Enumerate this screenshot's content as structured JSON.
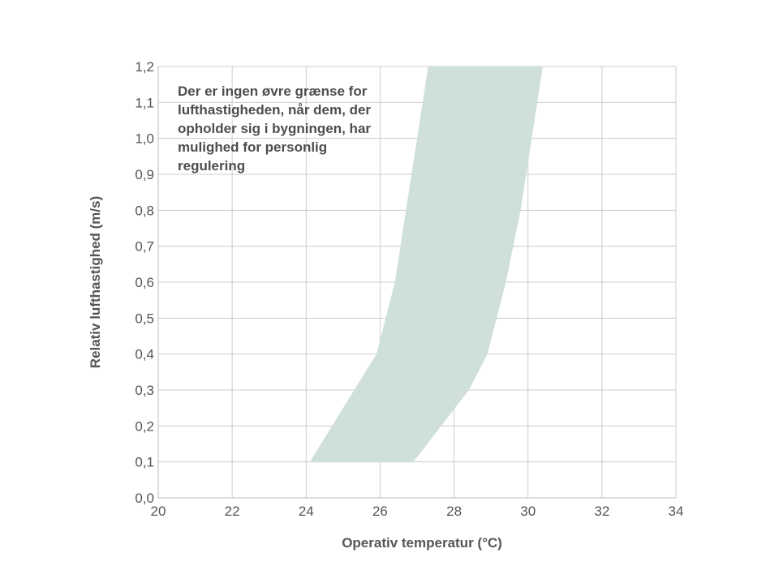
{
  "chart_data": {
    "type": "area",
    "xlabel": "Operativ temperatur (°C)",
    "ylabel": "Relativ lufthastighed (m/s)",
    "xlim": [
      20,
      34
    ],
    "ylim": [
      0,
      1.2
    ],
    "x_ticks": [
      "20",
      "22",
      "24",
      "26",
      "28",
      "30",
      "32",
      "34"
    ],
    "x_tick_values": [
      20,
      22,
      24,
      26,
      28,
      30,
      32,
      34
    ],
    "y_ticks": [
      "0,0",
      "0,1",
      "0,2",
      "0,3",
      "0,4",
      "0,5",
      "0,6",
      "0,7",
      "0,8",
      "0,9",
      "1,0",
      "1,1",
      "1,2"
    ],
    "y_tick_values": [
      0,
      0.1,
      0.2,
      0.3,
      0.4,
      0.5,
      0.6,
      0.7,
      0.8,
      0.9,
      1.0,
      1.1,
      1.2
    ],
    "grid": true,
    "band": {
      "color": "#cfe0d8",
      "lower_edge": [
        [
          24.1,
          0.1
        ],
        [
          25.3,
          0.3
        ],
        [
          25.9,
          0.4
        ],
        [
          26.4,
          0.6
        ],
        [
          26.7,
          0.8
        ],
        [
          27.0,
          1.0
        ],
        [
          27.3,
          1.2
        ]
      ],
      "upper_edge": [
        [
          26.9,
          0.1
        ],
        [
          28.4,
          0.3
        ],
        [
          28.9,
          0.4
        ],
        [
          29.4,
          0.6
        ],
        [
          29.8,
          0.8
        ],
        [
          30.1,
          1.0
        ],
        [
          30.4,
          1.2
        ]
      ]
    },
    "annotation": {
      "lines": [
        "Der er ingen øvre grænse for",
        "lufthastigheden, når dem, der",
        "opholder sig i bygningen, har",
        "mulighed for personlig",
        "regulering"
      ]
    },
    "grid_color": "#cccccc",
    "text_color": "#555555"
  }
}
